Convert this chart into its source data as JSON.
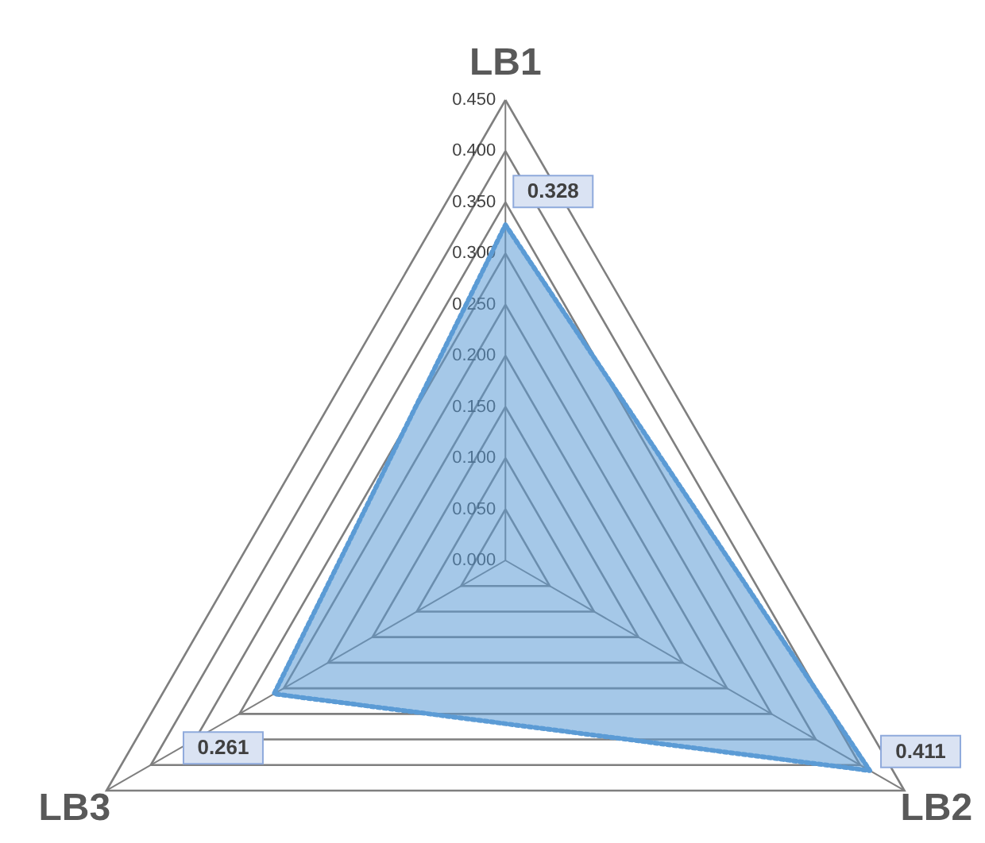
{
  "chart_data": {
    "type": "radar",
    "categories": [
      "LB1",
      "LB2",
      "LB3"
    ],
    "series": [
      {
        "color": "#5b9bd5",
        "values": [
          0.328,
          0.411,
          0.261
        ]
      }
    ],
    "ylim": [
      0,
      0.45
    ],
    "yticks": [
      {
        "value": 0,
        "label": "0.000"
      },
      {
        "value": 0.05,
        "label": "0.050"
      },
      {
        "value": 0.1,
        "label": "0.100"
      },
      {
        "value": 0.15,
        "label": "0.150"
      },
      {
        "value": 0.2,
        "label": "0.200"
      },
      {
        "value": 0.25,
        "label": "0.250"
      },
      {
        "value": 0.3,
        "label": "0.300"
      },
      {
        "value": 0.35,
        "label": "0.350"
      },
      {
        "value": 0.4,
        "label": "0.400"
      },
      {
        "value": 0.45,
        "label": "0.450"
      }
    ],
    "grid": true,
    "data_labels": true,
    "line_style": "dotted"
  }
}
